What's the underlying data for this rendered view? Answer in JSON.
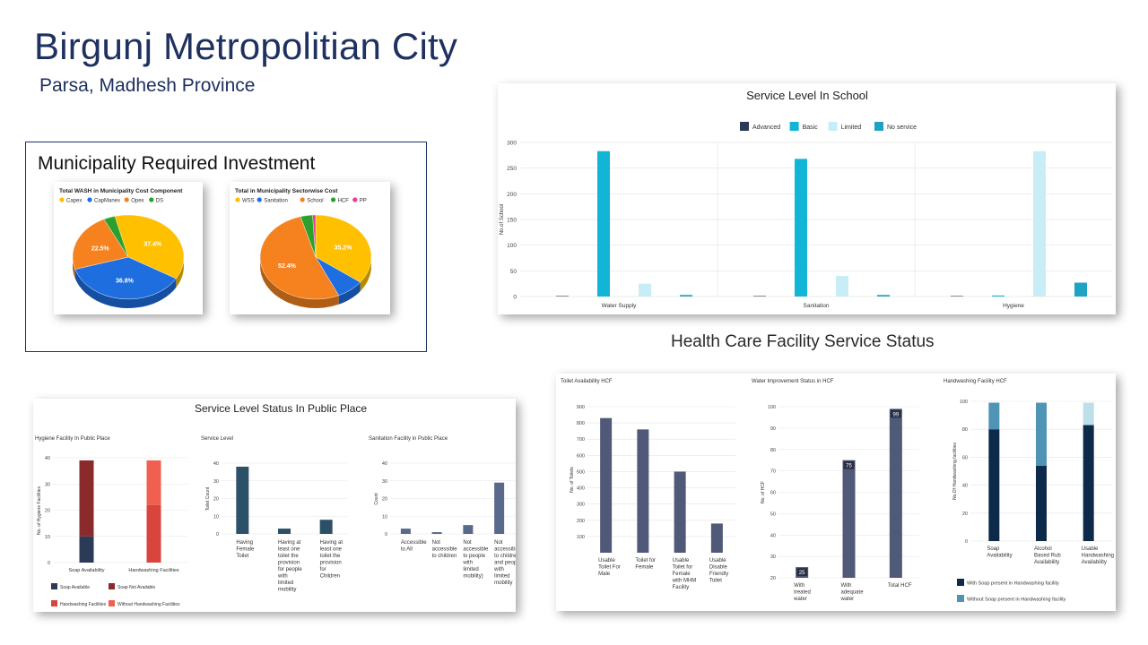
{
  "header": {
    "title": "Birgunj Metropolitian City",
    "subtitle": "Parsa, Madhesh Province"
  },
  "investment": {
    "title": "Municipality Required Investment"
  },
  "hcf_heading": "Health Care Facility Service Status",
  "chart_data": [
    {
      "type": "pie",
      "title": "Total WASH in Municipality Cost Component",
      "legend": [
        "Capex",
        "CapManex",
        "Opex",
        "DS"
      ],
      "colors": [
        "#ffc000",
        "#1f6ee0",
        "#f5821f",
        "#2ca02c"
      ],
      "values": [
        37.4,
        36.8,
        22.5,
        3.3
      ],
      "labels": [
        "37.4%",
        "36.8%",
        "22.5%",
        ""
      ]
    },
    {
      "type": "pie",
      "title": "Total in Municipality Sectorwise Cost",
      "legend": [
        "WSS",
        "Sanitation",
        "School",
        "HCF",
        "PP"
      ],
      "colors": [
        "#ffc000",
        "#1f6ee0",
        "#f5821f",
        "#2ca02c",
        "#e83e8c"
      ],
      "values": [
        35.2,
        8.0,
        52.4,
        3.5,
        0.9
      ],
      "labels": [
        "35.2%",
        "",
        "52.4%",
        "",
        ""
      ]
    },
    {
      "type": "bar",
      "title": "Service Level In School",
      "categories": [
        "Water Supply",
        "Sanitation",
        "Hygiene"
      ],
      "series": [
        {
          "name": "Advanced",
          "color": "#2b3a57",
          "values": [
            1,
            1,
            1
          ]
        },
        {
          "name": "Basic",
          "color": "#12b5d6",
          "values": [
            283,
            268,
            2
          ]
        },
        {
          "name": "Limited",
          "color": "#c9edf7",
          "values": [
            25,
            40,
            283
          ]
        },
        {
          "name": "No service",
          "color": "#1fa3c4",
          "values": [
            3,
            3,
            27
          ]
        }
      ],
      "ylabel": "No.of School",
      "ylim": [
        0,
        300
      ],
      "yticks": [
        "0",
        "50",
        "100",
        "150",
        "200",
        "250",
        "300"
      ]
    },
    {
      "type": "bar",
      "title": "Service Level Status In Public Place",
      "subcharts": [
        {
          "type": "bar",
          "title": "Hygiene Facility In Public Place",
          "categories": [
            "Soap Availability",
            "Handwashing Facilities"
          ],
          "series": [
            {
              "name": "Soap Available",
              "color": "#2b3a57",
              "values": [
                10,
                0
              ]
            },
            {
              "name": "Soap Not Available",
              "color": "#8b2a2a",
              "values": [
                29,
                0
              ]
            },
            {
              "name": "Handwashing Facilities",
              "color": "#d9443c",
              "values": [
                0,
                22
              ]
            },
            {
              "name": "Without Handwashing Facilities",
              "color": "#f06050",
              "values": [
                0,
                17
              ]
            }
          ],
          "ylabel": "No. of Hygiene Facilities",
          "ylim": [
            0,
            40
          ],
          "yticks": [
            "0",
            "10",
            "20",
            "30",
            "40"
          ]
        },
        {
          "type": "bar",
          "title": "Service Level",
          "categories": [
            "Having Female Toilet",
            "Having at least one toilet the provision for people with limited mobility",
            "Having at least one toilet the provision for Children"
          ],
          "values": [
            38,
            3,
            8
          ],
          "color": "#2c5068",
          "ylabel": "Toilet Count",
          "ylim": [
            0,
            40
          ],
          "yticks": [
            "0",
            "10",
            "20",
            "30",
            "40"
          ]
        },
        {
          "type": "bar",
          "title": "Sanitation Facility in Public Place",
          "categories": [
            "Accessible to All",
            "Not accessible to children",
            "Not accessible to people with limited mobility)",
            "Not accessible to children and people with limited mobility"
          ],
          "values": [
            3,
            1,
            5,
            29
          ],
          "color": "#5a6a8a",
          "ylabel": "Count",
          "ylim": [
            0,
            40
          ],
          "yticks": [
            "0",
            "10",
            "20",
            "30",
            "40"
          ]
        }
      ]
    },
    {
      "type": "bar",
      "title": "Toilet Availability HCF",
      "categories": [
        "Usable Toilet For Male",
        "Toilet for Female",
        "Usable Toilet for Female with MHM Facility",
        "Usable Disable Friendly Toilet"
      ],
      "values": [
        830,
        760,
        500,
        180
      ],
      "color": "#505a78",
      "ylabel": "No. of Toilets",
      "ylim": [
        0,
        900
      ],
      "yticks": [
        "100",
        "200",
        "300",
        "400",
        "500",
        "600",
        "700",
        "800",
        "900"
      ]
    },
    {
      "type": "bar",
      "title": "Water Improvement Status in HCF",
      "categories": [
        "With treated water",
        "With adequate water",
        "Total HCF"
      ],
      "values": [
        25,
        75,
        99
      ],
      "labels": [
        "25",
        "75",
        "99"
      ],
      "color": "#505a78",
      "ylabel": "No. of HCF",
      "ylim": [
        20,
        100
      ],
      "yticks": [
        "20",
        "30",
        "40",
        "50",
        "60",
        "70",
        "80",
        "90",
        "100"
      ]
    },
    {
      "type": "bar",
      "title": "Handwashing Facility HCF",
      "categories": [
        "Soap Availability",
        "Alcohol Based Rub Availability",
        "Usable Handwashing Availability"
      ],
      "series": [
        {
          "name": "With Soap present in Handwashing facility",
          "color": "#0d2a4a",
          "values": [
            80,
            54,
            83
          ]
        },
        {
          "name": "Without Soap present in Handwashing facility",
          "color": "#4f93b5",
          "values": [
            19,
            45,
            0
          ]
        },
        {
          "name": "",
          "color": "#bcdfe9",
          "values": [
            0,
            0,
            16
          ]
        }
      ],
      "ylabel": "No.Of Handwashing facilities",
      "ylim": [
        0,
        100
      ],
      "yticks": [
        "0",
        "20",
        "40",
        "60",
        "80",
        "100"
      ]
    }
  ]
}
